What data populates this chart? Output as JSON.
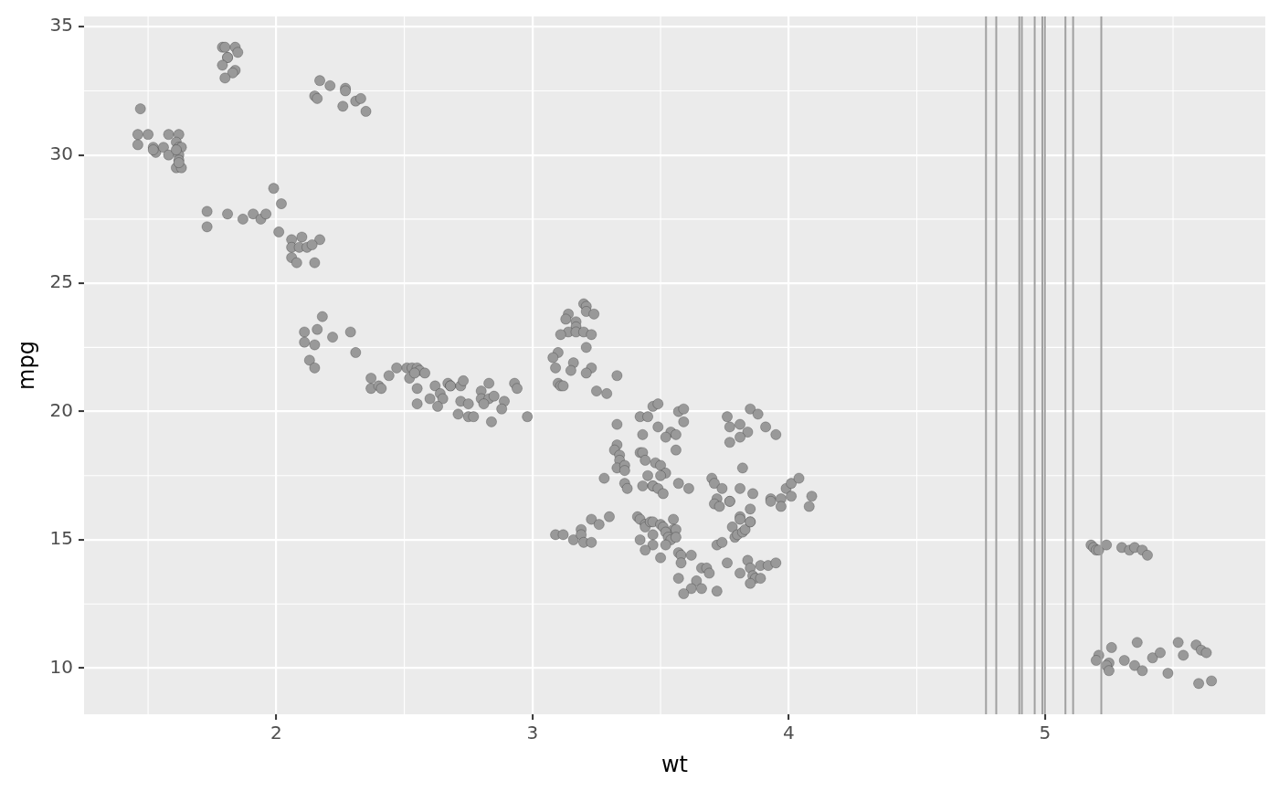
{
  "chart_data": {
    "type": "scatter",
    "xlabel": "wt",
    "ylabel": "mpg",
    "color": "#999999",
    "marker": "circle",
    "grid": true,
    "xlim": [
      1.25,
      5.86
    ],
    "ylim": [
      8.2,
      35.4
    ],
    "xticks": [
      2,
      3,
      4,
      5
    ],
    "yticks": [
      10,
      15,
      20,
      25,
      30,
      35
    ],
    "x": [
      1.47,
      1.46,
      1.5,
      1.46,
      1.52,
      1.53,
      1.52,
      1.56,
      1.58,
      1.58,
      1.62,
      1.61,
      1.62,
      1.63,
      1.62,
      1.62,
      1.61,
      1.63,
      1.62,
      1.61,
      1.79,
      1.8,
      1.84,
      1.85,
      1.81,
      1.81,
      1.79,
      1.84,
      1.83,
      1.8,
      2.17,
      2.21,
      2.27,
      2.27,
      2.15,
      2.16,
      2.31,
      2.33,
      2.26,
      2.35,
      1.73,
      1.73,
      1.81,
      1.87,
      1.91,
      1.94,
      1.96,
      1.99,
      2.02,
      2.01,
      2.06,
      2.1,
      2.17,
      2.06,
      2.09,
      2.12,
      2.14,
      2.06,
      2.08,
      2.15,
      2.18,
      2.11,
      2.16,
      2.22,
      2.29,
      2.11,
      2.15,
      2.31,
      2.13,
      2.15,
      2.37,
      2.37,
      2.4,
      2.41,
      2.44,
      2.47,
      2.51,
      2.52,
      2.53,
      2.55,
      2.56,
      2.54,
      2.58,
      2.55,
      2.55,
      2.62,
      2.64,
      2.6,
      2.65,
      2.63,
      2.67,
      2.68,
      2.68,
      2.72,
      2.73,
      2.72,
      2.75,
      2.71,
      2.75,
      2.77,
      2.8,
      2.83,
      2.8,
      2.83,
      2.85,
      2.81,
      2.89,
      2.88,
      2.84,
      2.93,
      2.94,
      2.98,
      3.2,
      3.21,
      3.21,
      3.24,
      3.14,
      3.13,
      3.17,
      3.17,
      3.14,
      3.11,
      3.17,
      3.2,
      3.23,
      3.21,
      3.1,
      3.08,
      3.09,
      3.16,
      3.15,
      3.23,
      3.21,
      3.33,
      3.1,
      3.11,
      3.12,
      3.25,
      3.29,
      3.47,
      3.49,
      3.42,
      3.45,
      3.57,
      3.59,
      3.59,
      3.33,
      3.49,
      3.43,
      3.54,
      3.56,
      3.52,
      3.56,
      3.33,
      3.32,
      3.34,
      3.34,
      3.42,
      3.43,
      3.44,
      3.48,
      3.5,
      3.33,
      3.36,
      3.36,
      3.52,
      3.5,
      3.28,
      3.45,
      3.36,
      3.37,
      3.43,
      3.47,
      3.47,
      3.49,
      3.51,
      3.57,
      3.61,
      3.76,
      3.85,
      3.88,
      3.81,
      3.77,
      3.84,
      3.91,
      3.95,
      3.81,
      3.77,
      3.82,
      3.7,
      3.71,
      3.74,
      3.81,
      3.86,
      3.72,
      3.71,
      3.73,
      3.77,
      3.77,
      3.93,
      3.93,
      3.97,
      3.97,
      3.99,
      4.01,
      4.04,
      4.01,
      4.09,
      4.08,
      3.09,
      3.12,
      3.16,
      3.19,
      3.19,
      3.2,
      3.23,
      3.23,
      3.26,
      3.3,
      3.41,
      3.42,
      3.44,
      3.44,
      3.46,
      3.47,
      3.5,
      3.51,
      3.55,
      3.55,
      3.56,
      3.52,
      3.53,
      3.54,
      3.56,
      3.47,
      3.42,
      3.47,
      3.44,
      3.52,
      3.5,
      3.57,
      3.58,
      3.62,
      3.58,
      3.57,
      3.64,
      3.62,
      3.59,
      3.66,
      3.66,
      3.68,
      3.69,
      3.72,
      3.72,
      3.74,
      3.76,
      3.78,
      3.79,
      3.8,
      3.82,
      3.83,
      3.81,
      3.81,
      3.85,
      3.85,
      3.85,
      3.81,
      3.84,
      3.85,
      3.86,
      3.87,
      3.85,
      3.89,
      3.89,
      3.92,
      3.95,
      5.18,
      5.19,
      5.2,
      5.21,
      5.24,
      5.3,
      5.33,
      5.35,
      5.38,
      5.4,
      5.21,
      5.2,
      5.26,
      5.25,
      5.24,
      5.25,
      5.31,
      5.35,
      5.36,
      5.38,
      5.42,
      5.45,
      5.48,
      5.52,
      5.54,
      5.59,
      5.61,
      5.63,
      5.6,
      5.65
    ],
    "values": [
      31.8,
      30.8,
      30.8,
      30.4,
      30.3,
      30.1,
      30.2,
      30.3,
      30.8,
      30.0,
      30.8,
      30.5,
      30.3,
      30.3,
      30.0,
      29.8,
      29.5,
      29.5,
      29.7,
      30.2,
      34.2,
      34.2,
      34.2,
      34.0,
      33.8,
      33.8,
      33.5,
      33.3,
      33.2,
      33.0,
      32.9,
      32.7,
      32.6,
      32.5,
      32.3,
      32.2,
      32.1,
      32.2,
      31.9,
      31.7,
      27.8,
      27.2,
      27.7,
      27.5,
      27.7,
      27.5,
      27.7,
      28.7,
      28.1,
      27.0,
      26.7,
      26.8,
      26.7,
      26.4,
      26.4,
      26.4,
      26.5,
      26.0,
      25.8,
      25.8,
      23.7,
      23.1,
      23.2,
      22.9,
      23.1,
      22.7,
      22.6,
      22.3,
      22.0,
      21.7,
      21.3,
      20.9,
      21.0,
      20.9,
      21.4,
      21.7,
      21.7,
      21.3,
      21.7,
      21.7,
      21.6,
      21.5,
      21.5,
      20.9,
      20.3,
      21.0,
      20.7,
      20.5,
      20.5,
      20.2,
      21.1,
      21.0,
      21.0,
      21.0,
      21.2,
      20.4,
      20.3,
      19.9,
      19.8,
      19.8,
      20.8,
      21.1,
      20.5,
      20.5,
      20.6,
      20.3,
      20.4,
      20.1,
      19.6,
      21.1,
      20.9,
      19.8,
      24.2,
      24.1,
      23.9,
      23.8,
      23.8,
      23.6,
      23.5,
      23.3,
      23.1,
      23.0,
      23.1,
      23.1,
      23.0,
      22.5,
      22.3,
      22.1,
      21.7,
      21.9,
      21.6,
      21.7,
      21.5,
      21.4,
      21.1,
      21.0,
      21.0,
      20.8,
      20.7,
      20.2,
      20.3,
      19.8,
      19.8,
      20.0,
      20.1,
      19.6,
      19.5,
      19.4,
      19.1,
      19.2,
      19.1,
      19.0,
      18.5,
      18.7,
      18.5,
      18.3,
      18.1,
      18.4,
      18.4,
      18.1,
      18.0,
      17.9,
      17.8,
      17.9,
      17.7,
      17.6,
      17.5,
      17.4,
      17.5,
      17.2,
      17.0,
      17.1,
      17.1,
      17.1,
      17.0,
      16.8,
      17.2,
      17.0,
      19.8,
      20.1,
      19.9,
      19.5,
      19.4,
      19.2,
      19.4,
      19.1,
      19.0,
      18.8,
      17.8,
      17.4,
      17.2,
      17.0,
      17.0,
      16.8,
      16.6,
      16.4,
      16.3,
      16.5,
      16.5,
      16.6,
      16.5,
      16.6,
      16.3,
      17.0,
      17.2,
      17.4,
      16.7,
      16.7,
      16.3,
      15.2,
      15.2,
      15.0,
      15.4,
      15.2,
      14.9,
      14.9,
      15.8,
      15.6,
      15.9,
      15.9,
      15.8,
      15.6,
      15.5,
      15.7,
      15.7,
      15.6,
      15.5,
      15.8,
      15.4,
      15.4,
      15.3,
      15.1,
      15.0,
      15.1,
      15.2,
      15.0,
      14.8,
      14.6,
      14.8,
      14.3,
      14.5,
      14.4,
      14.4,
      14.1,
      13.5,
      13.4,
      13.1,
      12.9,
      13.1,
      13.9,
      13.9,
      13.7,
      13.0,
      14.8,
      14.9,
      14.1,
      15.5,
      15.1,
      15.2,
      15.3,
      15.4,
      15.9,
      15.8,
      16.2,
      15.7,
      15.7,
      13.7,
      14.2,
      13.9,
      13.6,
      13.5,
      13.3,
      13.5,
      14.0,
      14.0,
      14.1,
      14.8,
      14.7,
      14.6,
      14.6,
      14.8,
      14.7,
      14.6,
      14.7,
      14.6,
      14.4,
      10.5,
      10.3,
      10.8,
      10.2,
      10.1,
      9.9,
      10.3,
      10.1,
      11.0,
      9.9,
      10.4,
      10.6,
      9.8,
      11.0,
      10.5,
      10.9,
      10.7,
      10.6,
      9.4,
      9.5
    ],
    "ref_lines": [
      {
        "axis": "x",
        "value": 4.77,
        "color": "#a0a0a0"
      },
      {
        "axis": "x",
        "value": 4.81,
        "color": "#a0a0a0"
      },
      {
        "axis": "x",
        "value": 4.9,
        "color": "#a0a0a0"
      },
      {
        "axis": "x",
        "value": 4.91,
        "color": "#a0a0a0"
      },
      {
        "axis": "x",
        "value": 4.96,
        "color": "#a0a0a0"
      },
      {
        "axis": "x",
        "value": 4.99,
        "color": "#a0a0a0"
      },
      {
        "axis": "x",
        "value": 5.0,
        "color": "#a0a0a0"
      },
      {
        "axis": "x",
        "value": 5.08,
        "color": "#a0a0a0"
      },
      {
        "axis": "x",
        "value": 5.11,
        "color": "#a0a0a0"
      },
      {
        "axis": "x",
        "value": 5.22,
        "color": "#a0a0a0"
      }
    ]
  }
}
